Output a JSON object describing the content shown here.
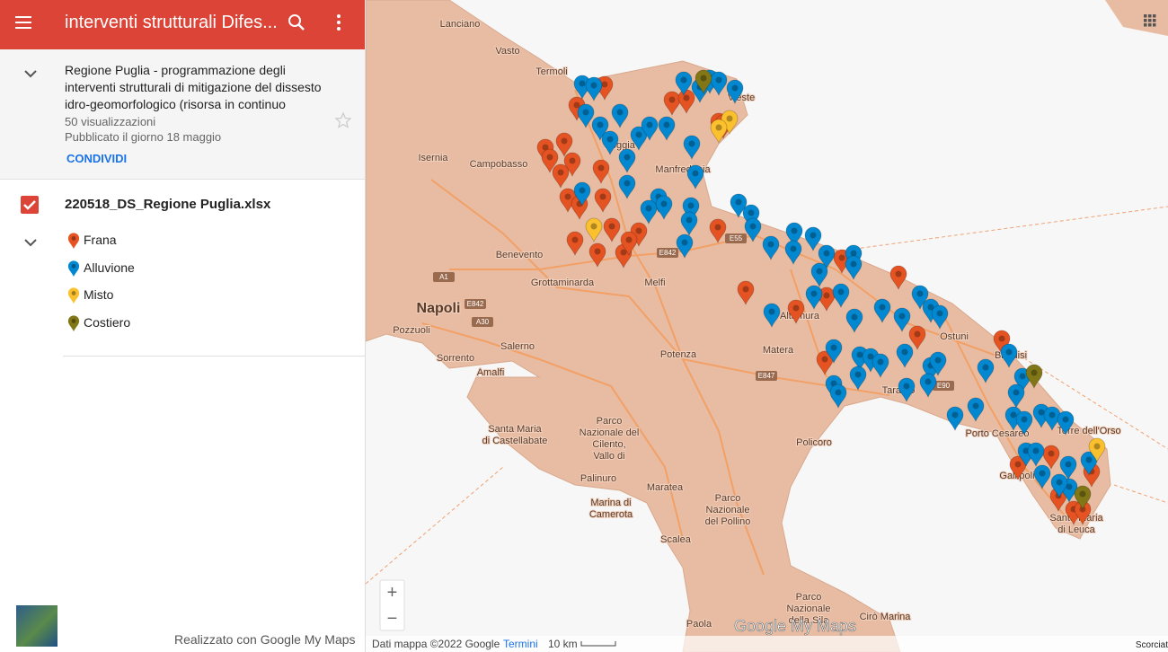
{
  "header": {
    "title": "interventi strutturali Difes..."
  },
  "info": {
    "description": "Regione Puglia - programmazione degli interventi strutturali di mitigazione del dissesto idro-geomorfologico (risorsa in continuo",
    "views": "50 visualizzazioni",
    "published": "Pubblicato il giorno 18 maggio",
    "share": "CONDIVIDI"
  },
  "layer": {
    "name": "220518_DS_Regione Puglia.xlsx",
    "legend": [
      {
        "label": "Frana",
        "color": "#e65322"
      },
      {
        "label": "Alluvione",
        "color": "#0288d1"
      },
      {
        "label": "Misto",
        "color": "#fbc02d"
      },
      {
        "label": "Costiero",
        "color": "#827717"
      }
    ]
  },
  "footer": "Realizzato con Google My Maps",
  "map": {
    "places": [
      [
        "Lanciano"
      ],
      [
        "Vasto"
      ],
      [
        "Termoli"
      ],
      [
        "Isernia"
      ],
      [
        "Campobasso"
      ],
      [
        "Benevento"
      ],
      [
        "Napoli"
      ],
      [
        "Pozzuoli"
      ],
      [
        "Sorrento"
      ],
      [
        "Amalfi"
      ],
      [
        "Salerno"
      ],
      [
        "Grottaminarda"
      ],
      [
        "Melfi"
      ],
      [
        "Potenza"
      ],
      [
        "Matera"
      ],
      [
        "Taranto"
      ],
      [
        "Ostuni"
      ],
      [
        "Brindisi"
      ],
      [
        "Porto Cesareo"
      ],
      [
        "Gallipoli"
      ],
      [
        "Santa Maria",
        "di Leuca"
      ],
      [
        "Torre dell'Orso"
      ],
      [
        "Policoro"
      ],
      [
        "Santa Maria",
        "di Castellabate"
      ],
      [
        "Parco",
        "Nazionale del",
        "Cilento,",
        "Vallo di"
      ],
      [
        "Palinuro"
      ],
      [
        "Marina di",
        "Camerota"
      ],
      [
        "Maratea"
      ],
      [
        "Scalea"
      ],
      [
        "Parco",
        "Nazionale",
        "del Pollino"
      ],
      [
        "Manfredonia"
      ],
      [
        "Foggia"
      ],
      [
        "Altamura"
      ],
      [
        "Vieste"
      ],
      [
        "Paola"
      ],
      [
        "Cirò Marina"
      ],
      [
        "Parco",
        "Nazionale",
        "della Sila"
      ]
    ],
    "roads": [
      "E842",
      "A1",
      "E842",
      "A30",
      "E847",
      "E90",
      "E55"
    ],
    "zoom_in": "+",
    "zoom_out": "−",
    "logo": "Google My Maps",
    "attribution": "Dati mappa ©2022 Google",
    "terms": "Termini",
    "scale": "10 km",
    "shortcuts": "Scorciat"
  }
}
